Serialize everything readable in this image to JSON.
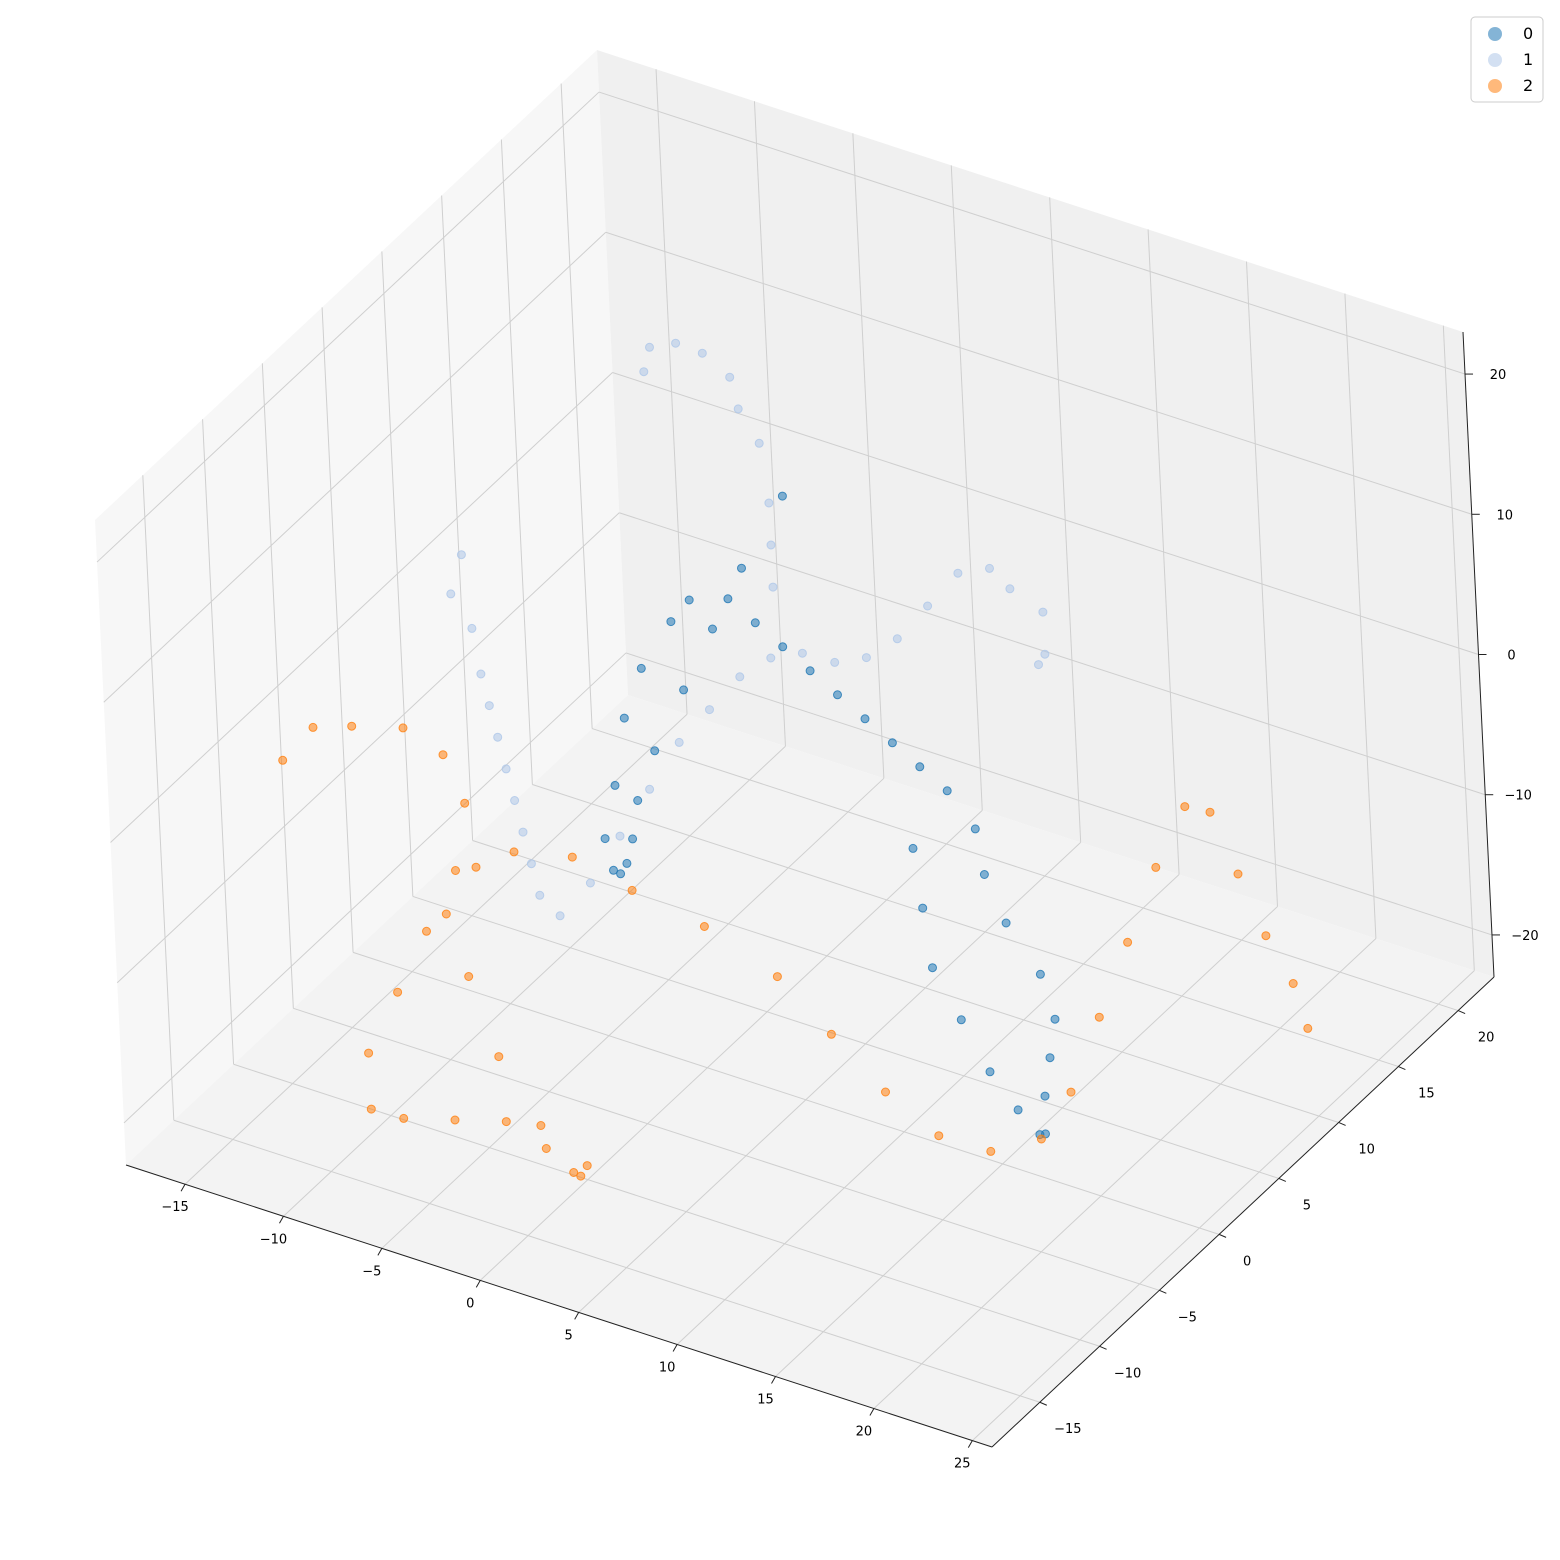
{
  "legend": {
    "placement": "top-right",
    "entries": [
      {
        "label": "0",
        "color": "#1f77b4"
      },
      {
        "label": "1",
        "color": "#aec7e8"
      },
      {
        "label": "2",
        "color": "#ff7f0e"
      }
    ]
  },
  "chart_data": {
    "type": "scatter",
    "projection": "3d",
    "title": "",
    "xlabel": "",
    "ylabel": "",
    "zlabel": "",
    "xlim": [
      -18,
      26
    ],
    "ylim": [
      -19,
      23
    ],
    "zlim": [
      -23,
      23
    ],
    "grid": true,
    "x_ticks": [
      -15,
      -10,
      -5,
      0,
      5,
      10,
      15,
      20,
      25
    ],
    "y_ticks": [
      -15,
      -10,
      -5,
      0,
      5,
      10,
      15,
      20
    ],
    "z_ticks": [
      -20,
      -10,
      0,
      10,
      20
    ],
    "x_tick_labels": [
      "−15",
      "−10",
      "−5",
      "0",
      "5",
      "10",
      "15",
      "20",
      "25"
    ],
    "y_tick_labels": [
      "−15",
      "−10",
      "−5",
      "0",
      "5",
      "10",
      "15",
      "20"
    ],
    "z_tick_labels": [
      "−20",
      "−10",
      "0",
      "10",
      "20"
    ],
    "series": [
      {
        "name": "0",
        "color": "#1f77b4",
        "points": [
          [
            4,
            2,
            18
          ],
          [
            3,
            0,
            14
          ],
          [
            2,
            -1,
            10
          ],
          [
            1,
            -2,
            6
          ],
          [
            0,
            -3,
            2
          ],
          [
            -1,
            -3,
            -2
          ],
          [
            -2,
            -2,
            -6
          ],
          [
            -3,
            -1,
            -9
          ],
          [
            -4,
            0,
            -11
          ],
          [
            -5,
            1,
            -12
          ],
          [
            -6,
            2,
            -11
          ],
          [
            -6,
            3,
            -8
          ],
          [
            -6,
            4,
            -4
          ],
          [
            -5,
            4,
            0
          ],
          [
            -4,
            5,
            3
          ],
          [
            -3,
            5,
            5
          ],
          [
            -1,
            5,
            6
          ],
          [
            1,
            4,
            6
          ],
          [
            3,
            3,
            6
          ],
          [
            5,
            2,
            6
          ],
          [
            7,
            1,
            6
          ],
          [
            9,
            0,
            6
          ],
          [
            11,
            -1,
            6
          ],
          [
            13,
            -2,
            6
          ],
          [
            15,
            -3,
            6
          ],
          [
            17,
            -4,
            5
          ],
          [
            18,
            -5,
            3
          ],
          [
            19,
            -5,
            0
          ],
          [
            20,
            -4,
            -4
          ],
          [
            20,
            -3,
            -8
          ],
          [
            19,
            -2,
            -12
          ],
          [
            18,
            -1,
            -16
          ],
          [
            17,
            0,
            -20
          ],
          [
            16,
            2,
            -22
          ],
          [
            14,
            3,
            -22
          ],
          [
            12,
            4,
            -21
          ],
          [
            10,
            5,
            -19
          ],
          [
            8,
            6,
            -17
          ],
          [
            7,
            7,
            -14
          ],
          [
            6,
            8,
            -11
          ]
        ]
      },
      {
        "name": "1",
        "color": "#aec7e8",
        "points": [
          [
            -8,
            10,
            15
          ],
          [
            -7,
            9,
            18
          ],
          [
            -5,
            8,
            20
          ],
          [
            -3,
            7,
            21
          ],
          [
            -1,
            6,
            21
          ],
          [
            0,
            5,
            20
          ],
          [
            1,
            5,
            18
          ],
          [
            2,
            4,
            15
          ],
          [
            2,
            4,
            12
          ],
          [
            2,
            4,
            9
          ],
          [
            -14,
            4,
            4
          ],
          [
            -14,
            3,
            2
          ],
          [
            -13,
            3,
            0
          ],
          [
            -12,
            2,
            -2
          ],
          [
            -11,
            1,
            -3
          ],
          [
            -10,
            0,
            -4
          ],
          [
            -9,
            -1,
            -5
          ],
          [
            -8,
            -2,
            -6
          ],
          [
            -7,
            -3,
            -7
          ],
          [
            -6,
            -4,
            -8
          ],
          [
            -5,
            -5,
            -9
          ],
          [
            -4,
            -5,
            -10
          ],
          [
            -3,
            -4,
            -8
          ],
          [
            -2,
            -3,
            -5
          ],
          [
            -1,
            -2,
            -2
          ],
          [
            0,
            -1,
            1
          ],
          [
            1,
            0,
            3
          ],
          [
            2,
            1,
            5
          ],
          [
            3,
            2,
            6
          ],
          [
            4,
            3,
            6
          ],
          [
            5,
            4,
            5
          ],
          [
            6,
            5,
            5
          ],
          [
            7,
            6,
            6
          ],
          [
            8,
            7,
            8
          ],
          [
            9,
            8,
            10
          ],
          [
            10,
            9,
            10
          ],
          [
            11,
            9,
            9
          ],
          [
            12,
            10,
            7
          ],
          [
            12,
            10,
            4
          ],
          [
            11,
            11,
            2
          ]
        ]
      },
      {
        "name": "2",
        "color": "#ff7f0e",
        "points": [
          [
            -16,
            -8,
            -2
          ],
          [
            -15,
            -7,
            0
          ],
          [
            -13,
            -7,
            1
          ],
          [
            -11,
            -6,
            1
          ],
          [
            -9,
            -6,
            0
          ],
          [
            -8,
            -6,
            -3
          ],
          [
            -8,
            -7,
            -7
          ],
          [
            -9,
            -8,
            -11
          ],
          [
            -10,
            -9,
            -15
          ],
          [
            -11,
            -10,
            -19
          ],
          [
            -11,
            -10,
            -23
          ],
          [
            -10,
            -9,
            -24
          ],
          [
            -8,
            -8,
            -24
          ],
          [
            -6,
            -7,
            -24
          ],
          [
            -4,
            -7,
            -25
          ],
          [
            -2,
            -8,
            -25
          ],
          [
            -1,
            -9,
            -24
          ],
          [
            0,
            -10,
            -22
          ],
          [
            -1,
            -12,
            -18
          ],
          [
            -3,
            -12,
            -14
          ],
          [
            -5,
            -11,
            -10
          ],
          [
            -6,
            -11,
            -6
          ],
          [
            -5,
            -10,
            -3
          ],
          [
            -3,
            -10,
            -1
          ],
          [
            0,
            -10,
            0
          ],
          [
            3,
            -10,
            -1
          ],
          [
            6,
            -9,
            -3
          ],
          [
            9,
            -8,
            -6
          ],
          [
            11,
            -7,
            -10
          ],
          [
            13,
            -6,
            -14
          ],
          [
            15,
            -5,
            -17
          ],
          [
            17,
            -4,
            -18
          ],
          [
            19,
            -3,
            -17
          ],
          [
            20,
            -2,
            -14
          ],
          [
            21,
            -1,
            -9
          ],
          [
            22,
            0,
            -4
          ],
          [
            23,
            1,
            1
          ],
          [
            24,
            2,
            5
          ],
          [
            24,
            4,
            3
          ],
          [
            24,
            6,
            -3
          ],
          [
            24,
            8,
            -9
          ],
          [
            24,
            10,
            -14
          ],
          [
            24,
            11,
            -18
          ]
        ]
      }
    ]
  }
}
